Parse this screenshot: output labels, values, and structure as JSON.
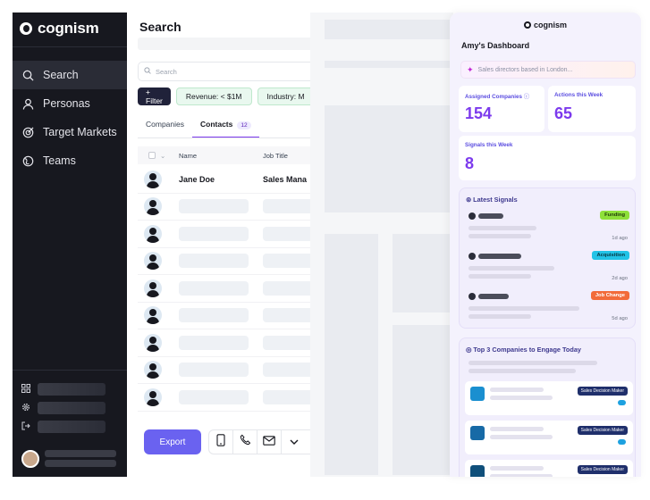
{
  "sidebar": {
    "brand": "cognism",
    "nav": [
      {
        "label": "Search",
        "icon": "search-icon",
        "active": true
      },
      {
        "label": "Personas",
        "icon": "person-icon",
        "active": false
      },
      {
        "label": "Target Markets",
        "icon": "target-icon",
        "active": false
      },
      {
        "label": "Teams",
        "icon": "globe-icon",
        "active": false
      }
    ],
    "bottom_icons": [
      "grid-icon",
      "gear-icon",
      "logout-icon"
    ]
  },
  "search": {
    "title": "Search",
    "placeholder": "Search",
    "filter_button": "+ Filter",
    "chips": [
      "Revenue: < $1M",
      "Industry: M"
    ],
    "tabs": [
      {
        "label": "Companies",
        "active": false
      },
      {
        "label": "Contacts",
        "count": "12",
        "active": true
      }
    ],
    "columns": [
      "Name",
      "Job Title"
    ],
    "rows": [
      {
        "name": "Jane Doe",
        "job_title": "Sales Mana"
      }
    ],
    "placeholder_row_count": 8,
    "export_label": "Export"
  },
  "dashboard": {
    "brand": "cognism",
    "title": "Amy's Dashboard",
    "prompt_placeholder": "Sales directors based in London...",
    "stats": [
      {
        "label": "Assigned Companies",
        "value": "154"
      },
      {
        "label": "Actions this Week",
        "value": "65"
      },
      {
        "label": "Signals this Week",
        "value": "8"
      }
    ],
    "signals_title": "Latest Signals",
    "signals": [
      {
        "badge": "Funding",
        "badge_color": "#8ee03a",
        "ago": "1d ago"
      },
      {
        "badge": "Acquisition",
        "badge_color": "#22c3e6",
        "ago": "2d ago"
      },
      {
        "badge": "Job Change",
        "badge_color": "#f26b3a",
        "ago": "5d ago"
      }
    ],
    "top_title": "Top 3 Companies to Engage Today",
    "companies": [
      {
        "tag": "Sales Decision Maker",
        "color": "#1a8fd0"
      },
      {
        "tag": "Sales Decision Maker",
        "color": "#176aa6"
      },
      {
        "tag": "Sales Decision Maker",
        "color": "#0f4f7a"
      }
    ]
  }
}
